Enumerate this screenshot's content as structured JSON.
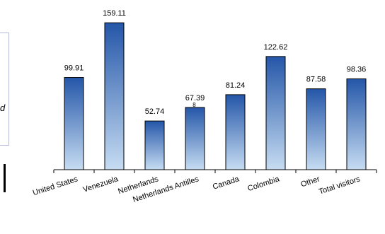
{
  "chart_data": {
    "type": "bar",
    "categories": [
      "United States",
      "Venezuela",
      "Netherlands",
      "Netherlands Antilles",
      "Canada",
      "Colombia",
      "Other",
      "Total visitors"
    ],
    "values": [
      99.91,
      159.11,
      52.74,
      67.39,
      81.24,
      122.62,
      87.58,
      98.36
    ],
    "value_labels": [
      "99.91",
      "159.11",
      "52.74",
      "67.39",
      "81.24",
      "122.62",
      "87.58",
      "98.36"
    ],
    "stray_label": "8",
    "ylim": [
      0,
      170
    ],
    "grid": false,
    "bar_gradient": [
      "#2456a8",
      "#c6dcf2"
    ]
  },
  "side_panel": {
    "text": "d"
  }
}
